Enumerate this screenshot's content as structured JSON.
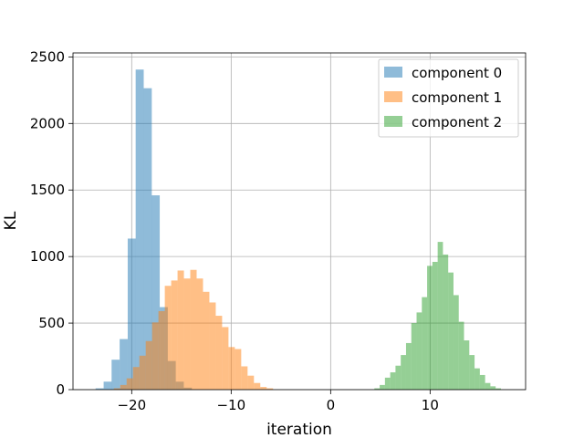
{
  "chart_data": {
    "type": "histogram",
    "xlabel": "iteration",
    "ylabel": "KL",
    "xlim": [
      -25.9,
      19.6
    ],
    "ylim": [
      0,
      2530
    ],
    "xticks": [
      -20,
      -10,
      0,
      10
    ],
    "xtick_labels": [
      "−20",
      "−10",
      "0",
      "10"
    ],
    "yticks": [
      0,
      500,
      1000,
      1500,
      2000,
      2500
    ],
    "ytick_labels": [
      "0",
      "500",
      "1000",
      "1500",
      "2000",
      "2500"
    ],
    "grid": true,
    "legend_position": "top-right",
    "series": [
      {
        "name": "component 0",
        "color": "#1f77b4",
        "bins": [
          [
            -23.63,
            10
          ],
          [
            -22.82,
            60
          ],
          [
            -22.02,
            225
          ],
          [
            -21.21,
            380
          ],
          [
            -20.4,
            1135
          ],
          [
            -19.6,
            2405
          ],
          [
            -18.79,
            2265
          ],
          [
            -17.99,
            1460
          ],
          [
            -17.18,
            620
          ],
          [
            -16.38,
            215
          ],
          [
            -15.57,
            60
          ],
          [
            -14.76,
            15
          ]
        ]
      },
      {
        "name": "component 1",
        "color": "#ff7f0e",
        "bins": [
          [
            -21.79,
            10
          ],
          [
            -21.15,
            35
          ],
          [
            -20.51,
            85
          ],
          [
            -19.87,
            170
          ],
          [
            -19.23,
            255
          ],
          [
            -18.59,
            365
          ],
          [
            -17.95,
            505
          ],
          [
            -17.31,
            590
          ],
          [
            -16.67,
            780
          ],
          [
            -16.03,
            820
          ],
          [
            -15.39,
            895
          ],
          [
            -14.75,
            835
          ],
          [
            -14.11,
            900
          ],
          [
            -13.47,
            835
          ],
          [
            -12.83,
            735
          ],
          [
            -12.19,
            655
          ],
          [
            -11.55,
            555
          ],
          [
            -10.91,
            470
          ],
          [
            -10.27,
            320
          ],
          [
            -9.63,
            305
          ],
          [
            -8.99,
            175
          ],
          [
            -8.35,
            105
          ],
          [
            -7.71,
            50
          ],
          [
            -7.07,
            20
          ],
          [
            -6.43,
            10
          ]
        ]
      },
      {
        "name": "component 2",
        "color": "#2ca02c",
        "bins": [
          [
            4.4,
            10
          ],
          [
            4.93,
            35
          ],
          [
            5.46,
            90
          ],
          [
            5.99,
            130
          ],
          [
            6.52,
            180
          ],
          [
            7.05,
            260
          ],
          [
            7.58,
            350
          ],
          [
            8.11,
            500
          ],
          [
            8.64,
            580
          ],
          [
            9.17,
            695
          ],
          [
            9.7,
            930
          ],
          [
            10.23,
            960
          ],
          [
            10.76,
            1110
          ],
          [
            11.29,
            1015
          ],
          [
            11.82,
            880
          ],
          [
            12.35,
            710
          ],
          [
            12.88,
            510
          ],
          [
            13.41,
            370
          ],
          [
            13.94,
            260
          ],
          [
            14.47,
            160
          ],
          [
            15.0,
            110
          ],
          [
            15.53,
            50
          ],
          [
            16.06,
            25
          ],
          [
            16.59,
            10
          ]
        ]
      }
    ]
  }
}
